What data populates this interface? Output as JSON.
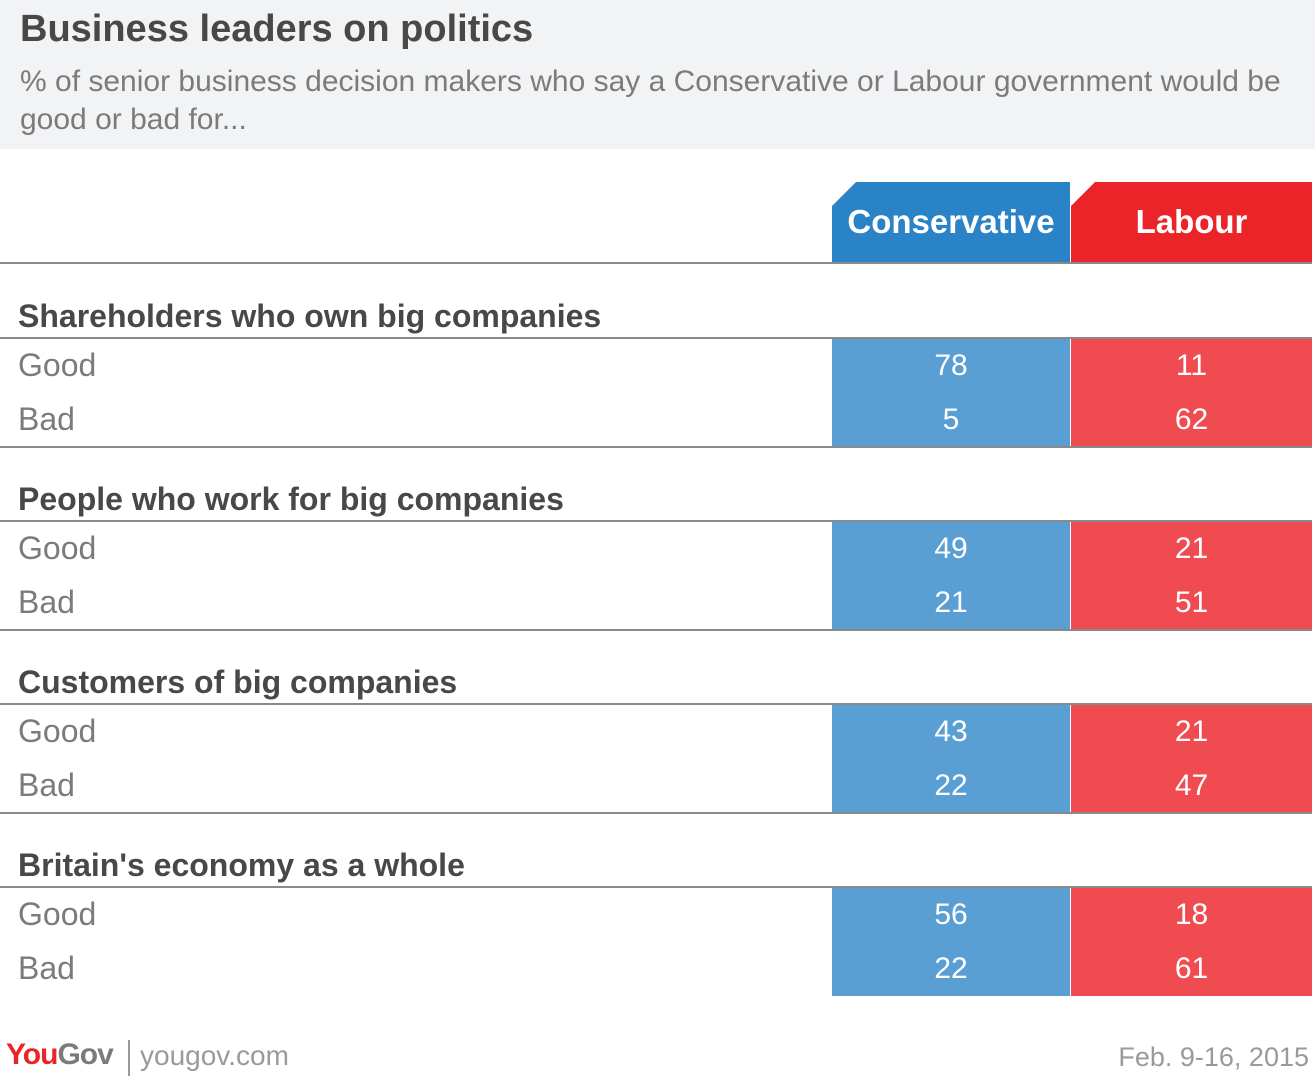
{
  "title": "Business leaders on politics",
  "subtitle": "% of senior business decision makers who say a Conservative or Labour government would be good or bad for...",
  "colors": {
    "conservative": "#2a82c7",
    "labour": "#ea2428"
  },
  "chart_data": {
    "type": "table",
    "columns": [
      "Conservative",
      "Labour"
    ],
    "groups": [
      {
        "name": "Shareholders who own big companies",
        "rows": [
          {
            "label": "Good",
            "conservative": "78",
            "labour": "11"
          },
          {
            "label": "Bad",
            "conservative": "5",
            "labour": "62"
          }
        ]
      },
      {
        "name": "People who work for big companies",
        "rows": [
          {
            "label": "Good",
            "conservative": "49",
            "labour": "21"
          },
          {
            "label": "Bad",
            "conservative": "21",
            "labour": "51"
          }
        ]
      },
      {
        "name": "Customers of big companies",
        "rows": [
          {
            "label": "Good",
            "conservative": "43",
            "labour": "21"
          },
          {
            "label": "Bad",
            "conservative": "22",
            "labour": "47"
          }
        ]
      },
      {
        "name": "Britain's economy as a whole",
        "rows": [
          {
            "label": "Good",
            "conservative": "56",
            "labour": "18"
          },
          {
            "label": "Bad",
            "conservative": "22",
            "labour": "61"
          }
        ]
      }
    ]
  },
  "footer": {
    "logo_you": "You",
    "logo_gov": "Gov",
    "site": "yougov.com",
    "date": "Feb. 9-16, 2015"
  }
}
